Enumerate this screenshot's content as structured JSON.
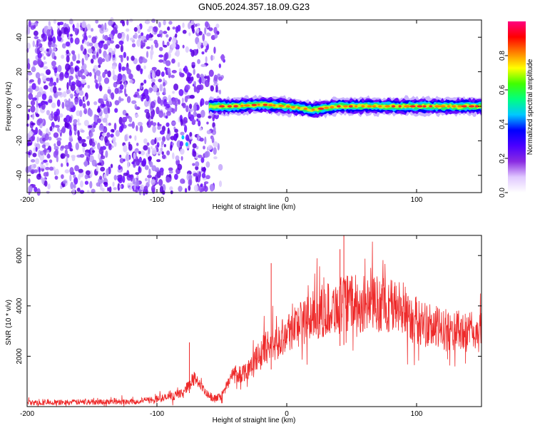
{
  "figure": {
    "title": "GN05.2024.357.18.09.G23"
  },
  "chart_data": [
    {
      "type": "heatmap",
      "xlabel": "Height of straight line (km)",
      "ylabel": "Frequency (Hz)",
      "xlim": [
        -200,
        150
      ],
      "ylim": [
        -50,
        50
      ],
      "xticks": [
        -200,
        -100,
        0,
        100
      ],
      "yticks": [
        -40,
        -20,
        0,
        20,
        40
      ],
      "colorbar": {
        "label": "Normalized spectral amplitude",
        "range": [
          0,
          1
        ],
        "ticks": [
          "0.0",
          "0.2",
          "0.4",
          "0.6",
          "0.8"
        ],
        "colors": [
          "#ffffff",
          "#e0c8ff",
          "#8a2be2",
          "#4b00ff",
          "#0000ff",
          "#00c8ff",
          "#00ff80",
          "#40ff00",
          "#ffff00",
          "#ff8000",
          "#ff0000",
          "#ff0080"
        ]
      },
      "noise_region_x": [
        -200,
        -48
      ],
      "signal_band": {
        "x": [
          -60,
          -40,
          -20,
          0,
          20,
          40,
          60,
          80,
          100,
          120,
          150
        ],
        "frequency": [
          0,
          0,
          1,
          0,
          -2,
          0,
          0,
          0,
          0,
          0,
          0
        ],
        "amplitude": [
          0.35,
          0.7,
          0.9,
          0.75,
          0.7,
          0.8,
          0.85,
          0.9,
          0.85,
          0.8,
          0.75
        ]
      }
    },
    {
      "type": "line",
      "xlabel": "Height of straight line (km)",
      "ylabel": "SNR (10 * v/v)",
      "xlim": [
        -200,
        150
      ],
      "ylim": [
        0,
        6800
      ],
      "xticks": [
        -200,
        -100,
        0,
        100
      ],
      "yticks": [
        2000,
        4000,
        6000
      ],
      "color": "#ee2a2a",
      "series": [
        {
          "x": [
            -200,
            -180,
            -160,
            -140,
            -120,
            -110,
            -100,
            -90,
            -80,
            -75,
            -70,
            -65,
            -60,
            -55,
            -50,
            -45,
            -40,
            -35,
            -30,
            -25,
            -20,
            -15,
            -10,
            -5,
            0,
            10,
            20,
            30,
            40,
            45,
            50,
            60,
            70,
            80,
            90,
            100,
            110,
            120,
            130,
            140,
            150
          ],
          "y": [
            150,
            160,
            180,
            190,
            200,
            230,
            300,
            380,
            560,
            900,
            1150,
            700,
            420,
            300,
            450,
            1000,
            1350,
            1300,
            1500,
            1800,
            2100,
            2400,
            2500,
            2700,
            3000,
            3300,
            3600,
            3850,
            4000,
            4100,
            4100,
            4050,
            4100,
            4000,
            3900,
            3400,
            3200,
            3050,
            3000,
            2950,
            2900
          ]
        }
      ],
      "spikes": [
        {
          "x": -75,
          "y": 2550
        },
        {
          "x": -12,
          "y": 5700
        },
        {
          "x": 44,
          "y": 6800
        },
        {
          "x": 41,
          "y": 6250
        }
      ]
    }
  ]
}
